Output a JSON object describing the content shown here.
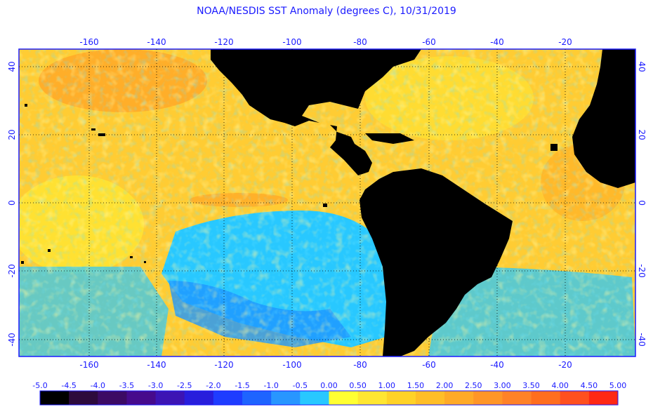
{
  "title": "NOAA/NESDIS SST Anomaly (degrees C), 10/31/2019",
  "map": {
    "lon_ticks": [
      "-160",
      "-140",
      "-120",
      "-100",
      "-80",
      "-60",
      "-40",
      "-20"
    ],
    "lat_ticks": [
      "40",
      "20",
      "0",
      "-20",
      "-40"
    ]
  },
  "colorbar": {
    "labels": [
      "-5.0",
      "-4.5",
      "-4.0",
      "-3.5",
      "-3.0",
      "-2.5",
      "-2.0",
      "-1.5",
      "-1.0",
      "-0.5",
      "0.00",
      "0.50",
      "1.00",
      "1.50",
      "2.00",
      "2.50",
      "3.00",
      "3.50",
      "4.00",
      "4.50",
      "5.00"
    ],
    "colors": [
      "#000000",
      "#2d0a3c",
      "#3c0a64",
      "#460a8c",
      "#3c14b4",
      "#281edc",
      "#1e3cff",
      "#1e64ff",
      "#2896ff",
      "#28c8ff",
      "#ffff32",
      "#ffe632",
      "#ffd228",
      "#ffbe28",
      "#ffaa28",
      "#ff9628",
      "#ff8228",
      "#ff6e1e",
      "#ff501e",
      "#ff2814"
    ]
  },
  "colors": {
    "ocean_warm": "#ffc832",
    "ocean_neutral": "#ffe632",
    "ocean_cool": "#28c8ff",
    "ocean_cold": "#1e64ff",
    "land": "#000000",
    "text": "#1a1aff"
  }
}
